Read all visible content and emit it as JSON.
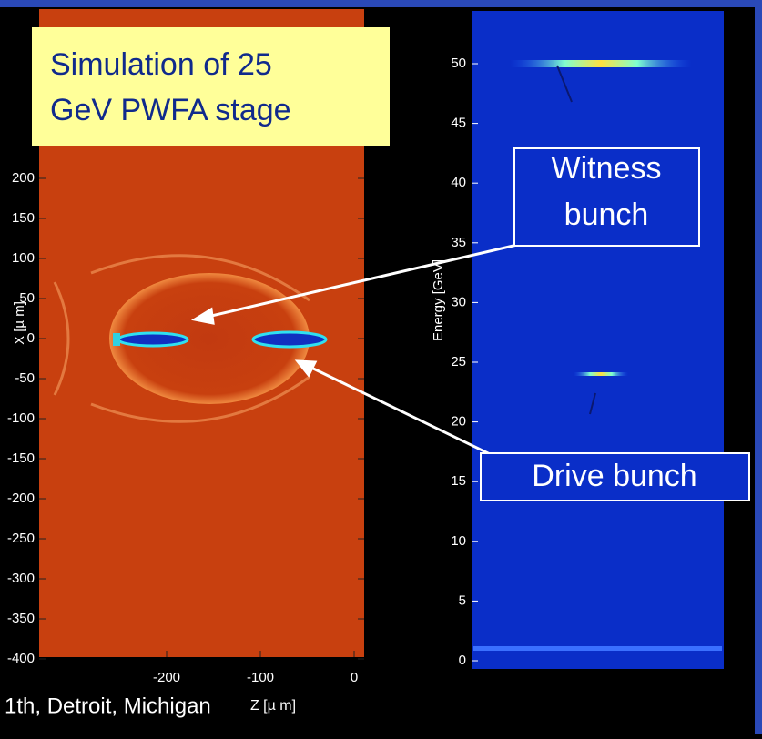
{
  "header": {
    "title_lines": [
      "Simulation of 25",
      "GeV PWFA stage"
    ]
  },
  "left_plot": {
    "y_label": "X [µ m]",
    "x_label": "Z [µ m]",
    "yticks": [
      200,
      150,
      100,
      50,
      0,
      -50,
      -100,
      -150,
      -200,
      -250,
      -300,
      -350,
      -400
    ],
    "xticks": [
      -200,
      -100,
      0
    ]
  },
  "right_plot": {
    "y_label": "Energy [GeV]",
    "yticks": [
      50,
      45,
      40,
      35,
      30,
      25,
      20,
      15,
      10,
      5,
      0
    ]
  },
  "annotations": {
    "witness": [
      "Witness",
      "bunch"
    ],
    "drive": "Drive bunch"
  },
  "footer": {
    "text": "1th, Detroit, Michigan"
  }
}
